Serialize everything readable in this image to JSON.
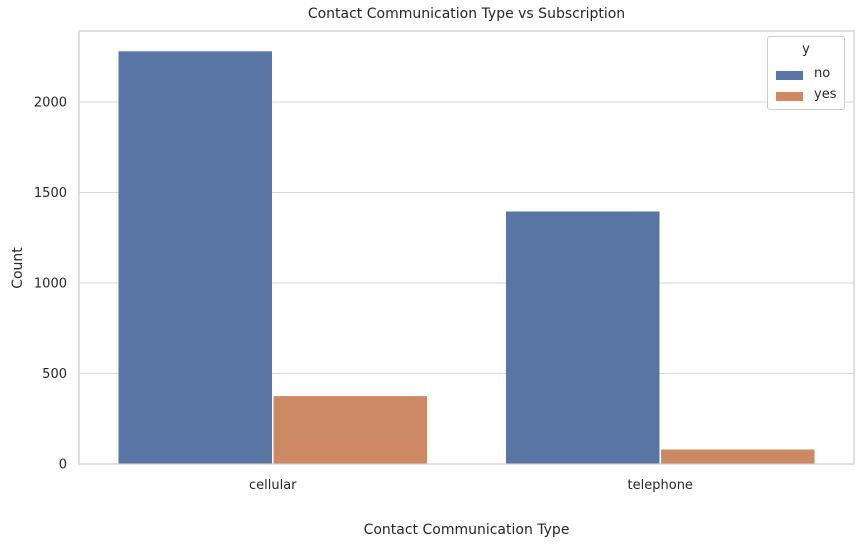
{
  "chart_data": {
    "type": "bar",
    "title": "Contact Communication Type vs Subscription",
    "xlabel": "Contact Communication Type",
    "ylabel": "Count",
    "categories": [
      "cellular",
      "telephone"
    ],
    "series": [
      {
        "name": "no",
        "values": [
          2280,
          1395
        ],
        "color": "#5875a4"
      },
      {
        "name": "yes",
        "values": [
          375,
          80
        ],
        "color": "#cc8963"
      }
    ],
    "ylim": [
      0,
      2392
    ],
    "yticks": [
      0,
      500,
      1000,
      1500,
      2000
    ],
    "grid": "horizontal",
    "legend": {
      "title": "y",
      "placement": "top-right"
    }
  }
}
